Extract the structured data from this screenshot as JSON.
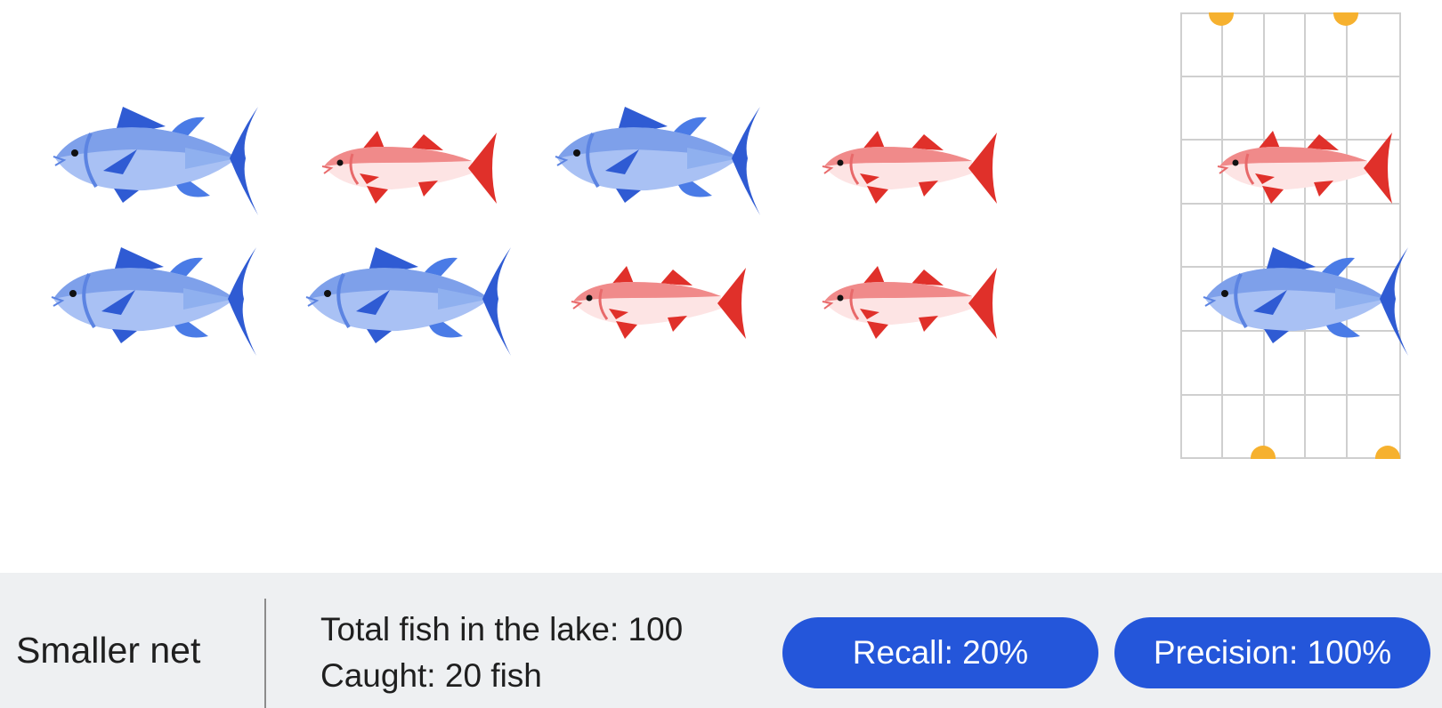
{
  "scene": {
    "lake_fish": [
      {
        "species": "blue-tuna",
        "row": 1,
        "col": 1
      },
      {
        "species": "red-snapper",
        "row": 1,
        "col": 2
      },
      {
        "species": "blue-tuna",
        "row": 1,
        "col": 3
      },
      {
        "species": "red-snapper",
        "row": 1,
        "col": 4
      },
      {
        "species": "blue-tuna",
        "row": 2,
        "col": 1
      },
      {
        "species": "blue-tuna",
        "row": 2,
        "col": 2
      },
      {
        "species": "red-snapper",
        "row": 2,
        "col": 3
      },
      {
        "species": "red-snapper",
        "row": 2,
        "col": 4
      }
    ],
    "net_fish": [
      {
        "species": "red-snapper"
      },
      {
        "species": "blue-tuna"
      }
    ],
    "colors": {
      "tuna_body": "#a9c1f4",
      "tuna_fin": "#2f5bd3",
      "snapper_body": "#fde4e4",
      "snapper_fin": "#e0302a",
      "net_line": "#cfcfcf",
      "net_handle": "#f6b12f",
      "pill": "#2456da",
      "footer_bg": "#eef0f2"
    }
  },
  "footer": {
    "net_label": "Smaller net",
    "total_fish": "Total fish in the lake: 100",
    "caught": "Caught: 20 fish",
    "recall_label": "Recall: 20%",
    "precision_label": "Precision: 100%",
    "recall_value": 0.2,
    "precision_value": 1.0
  }
}
